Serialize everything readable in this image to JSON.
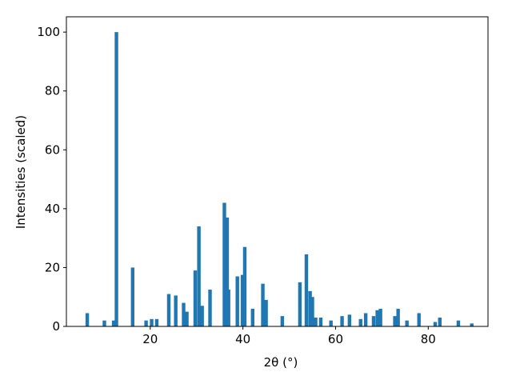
{
  "chart_data": {
    "type": "bar",
    "x_label": "2θ (°)",
    "y_label": "Intensities (scaled)",
    "x": [
      6.4,
      10.1,
      12.1,
      12.7,
      16.2,
      19.1,
      20.3,
      21.4,
      24.0,
      25.5,
      27.2,
      27.9,
      29.7,
      30.5,
      31.2,
      32.9,
      36.0,
      36.6,
      36.9,
      38.8,
      39.9,
      40.4,
      42.1,
      44.3,
      45.0,
      48.5,
      52.3,
      53.7,
      54.5,
      55.0,
      55.7,
      56.8,
      59.0,
      61.4,
      63.0,
      65.4,
      66.5,
      68.2,
      69.0,
      69.7,
      72.8,
      73.5,
      75.4,
      78.0,
      81.5,
      82.5,
      86.5,
      89.4
    ],
    "values": [
      4.5,
      2,
      2,
      100,
      20,
      2,
      2.5,
      2.5,
      11,
      10.5,
      8,
      5,
      19,
      34,
      7,
      12.5,
      42,
      37,
      12.5,
      17,
      17.5,
      27,
      6,
      14.5,
      9,
      3.5,
      15,
      24.5,
      12,
      10,
      3,
      3,
      2,
      3.5,
      4,
      2.5,
      4.5,
      3.5,
      5.5,
      6,
      3.5,
      6,
      2,
      4.5,
      1.5,
      3,
      2,
      1
    ],
    "color": "#1f77b4",
    "xlim": [
      1.9,
      92.9
    ],
    "xticks": [
      20,
      40,
      60,
      80
    ],
    "ylim": [
      0,
      105.2
    ],
    "yticks": [
      0,
      20,
      40,
      60,
      80,
      100
    ],
    "grid": false
  }
}
